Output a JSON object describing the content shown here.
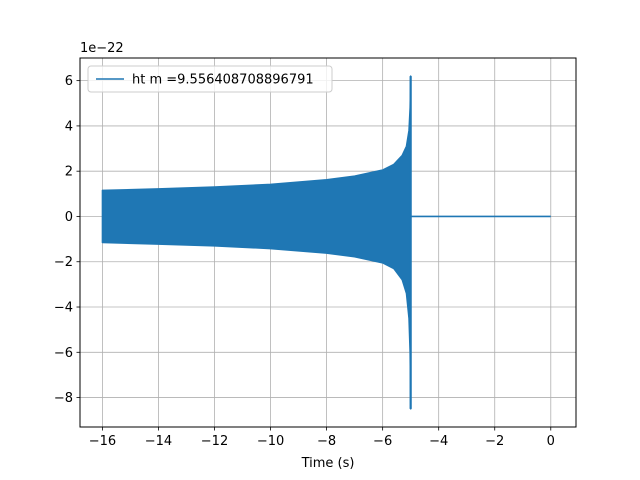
{
  "chart_data": {
    "type": "line",
    "title": "",
    "xlabel": "Time (s)",
    "ylabel": "",
    "y_offset_label": "1e−22",
    "xlim": [
      -16.8,
      0.9
    ],
    "ylim": [
      -9.3,
      7.0
    ],
    "x_ticks": [
      -16,
      -14,
      -12,
      -10,
      -8,
      -6,
      -4,
      -2,
      0
    ],
    "x_tick_labels": [
      "−16",
      "−14",
      "−12",
      "−10",
      "−8",
      "−6",
      "−4",
      "−2",
      "0"
    ],
    "y_ticks": [
      -8,
      -6,
      -4,
      -2,
      0,
      2,
      4,
      6
    ],
    "y_tick_labels": [
      "−8",
      "−6",
      "−4",
      "−2",
      "0",
      "2",
      "4",
      "6"
    ],
    "grid": true,
    "legend_position": "top-left",
    "series": [
      {
        "name": "ht m =9.556408708896791",
        "color": "#1f77b4",
        "shape": "chirp-envelope",
        "upper_envelope": {
          "x": [
            -16,
            -14,
            -12,
            -10,
            -8,
            -7,
            -6,
            -5.6,
            -5.3,
            -5.15,
            -5.06,
            -5.02,
            -5.0
          ],
          "y": [
            1.15,
            1.22,
            1.3,
            1.42,
            1.62,
            1.78,
            2.05,
            2.3,
            2.7,
            3.1,
            3.8,
            4.8,
            6.2
          ]
        },
        "lower_envelope": {
          "x": [
            -16,
            -14,
            -12,
            -10,
            -8,
            -7,
            -6,
            -5.6,
            -5.3,
            -5.15,
            -5.06,
            -5.02,
            -5.0
          ],
          "y": [
            -1.15,
            -1.22,
            -1.3,
            -1.42,
            -1.62,
            -1.78,
            -2.05,
            -2.3,
            -2.8,
            -3.4,
            -4.5,
            -6.0,
            -8.5
          ]
        },
        "tail": {
          "x": [
            -5.0,
            0.0
          ],
          "y": [
            0,
            0
          ]
        }
      }
    ]
  }
}
